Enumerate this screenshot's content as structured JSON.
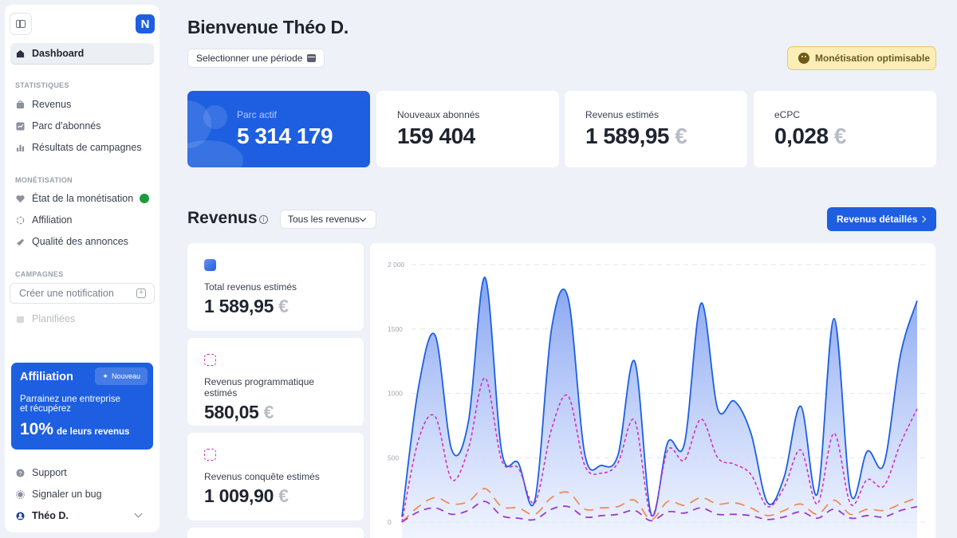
{
  "sidebar": {
    "dashboard": "Dashboard",
    "sections": {
      "stats": "STATISTIQUES",
      "monetisation": "MONÉTISATION",
      "campaigns": "CAMPAGNES"
    },
    "stats_items": [
      "Revenus",
      "Parc d'abonnés",
      "Résultats de campagnes"
    ],
    "monetisation_items": [
      "État de la monétisation",
      "Affiliation",
      "Qualité des annonces"
    ],
    "create_notification": "Créer une notification",
    "scheduled": "Planifiées",
    "affiliation_card": {
      "title": "Affiliation",
      "badge": "Nouveau",
      "text_line1": "Parrainez une entreprise",
      "text_line2": "et récupérez",
      "percent": "10%",
      "rest": "de leurs revenus"
    },
    "support": "Support",
    "report_bug": "Signaler un bug",
    "user": "Théo D."
  },
  "header": {
    "welcome": "Bienvenue Théo D.",
    "period_button": "Selectionner une période",
    "monetisation_status": "Monétisation optimisable"
  },
  "kpis": [
    {
      "label": "Parc actif",
      "value": "5 314 179",
      "euro": ""
    },
    {
      "label": "Nouveaux abonnés",
      "value": "159 404",
      "euro": ""
    },
    {
      "label": "Revenus estimés",
      "value": "1 589,95",
      "euro": "€"
    },
    {
      "label": "eCPC",
      "value": "0,028",
      "euro": "€"
    }
  ],
  "revenus": {
    "title": "Revenus",
    "filter": "Tous les revenus",
    "details_button": "Revenus détaillés",
    "cards": [
      {
        "label": "Total revenus estimés",
        "value": "1 589,95",
        "euro": "€"
      },
      {
        "label": "Revenus programmatique estimés",
        "value": "580,05",
        "euro": "€"
      },
      {
        "label": "Revenus conquête estimés",
        "value": "1 009,90",
        "euro": "€"
      }
    ]
  },
  "colors": {
    "brand_blue": "#1d5fe0",
    "pink": "#d62fc1",
    "orange": "#ef8c5a",
    "purple": "#9b3ccf",
    "warning_bg": "#fdeeb8"
  },
  "chart_data": {
    "type": "area",
    "y_ticks": [
      "2 000",
      "1500",
      "1000",
      "500",
      "0"
    ],
    "ylim": [
      0,
      2000
    ],
    "x": [
      0,
      1,
      2,
      3,
      4,
      5,
      6,
      7,
      8,
      9,
      10,
      11,
      12,
      13,
      14,
      15,
      16,
      17,
      18,
      19,
      20,
      21,
      22,
      23,
      24,
      25,
      26,
      27,
      28,
      29,
      30,
      31
    ],
    "series": [
      {
        "values": [
          40,
          1050,
          1450,
          560,
          780,
          1900,
          550,
          460,
          170,
          1500,
          1740,
          530,
          440,
          520,
          1250,
          60,
          620,
          610,
          1700,
          880,
          940,
          690,
          150,
          350,
          900,
          220,
          1580,
          220,
          550,
          450,
          1300,
          1720
        ]
      },
      {
        "values": [
          0,
          640,
          820,
          330,
          570,
          1120,
          480,
          420,
          150,
          720,
          980,
          440,
          380,
          460,
          790,
          50,
          560,
          480,
          800,
          500,
          450,
          370,
          120,
          270,
          560,
          140,
          690,
          140,
          330,
          280,
          610,
          880
        ]
      },
      {
        "values": [
          0,
          120,
          190,
          140,
          160,
          260,
          120,
          110,
          60,
          190,
          230,
          100,
          110,
          120,
          170,
          20,
          160,
          130,
          190,
          140,
          150,
          110,
          50,
          90,
          140,
          60,
          170,
          60,
          100,
          90,
          140,
          190
        ]
      },
      {
        "values": [
          0,
          80,
          110,
          60,
          90,
          160,
          50,
          30,
          20,
          100,
          120,
          40,
          50,
          60,
          90,
          10,
          80,
          70,
          110,
          60,
          60,
          50,
          20,
          40,
          80,
          30,
          100,
          30,
          50,
          40,
          90,
          120
        ]
      }
    ]
  }
}
